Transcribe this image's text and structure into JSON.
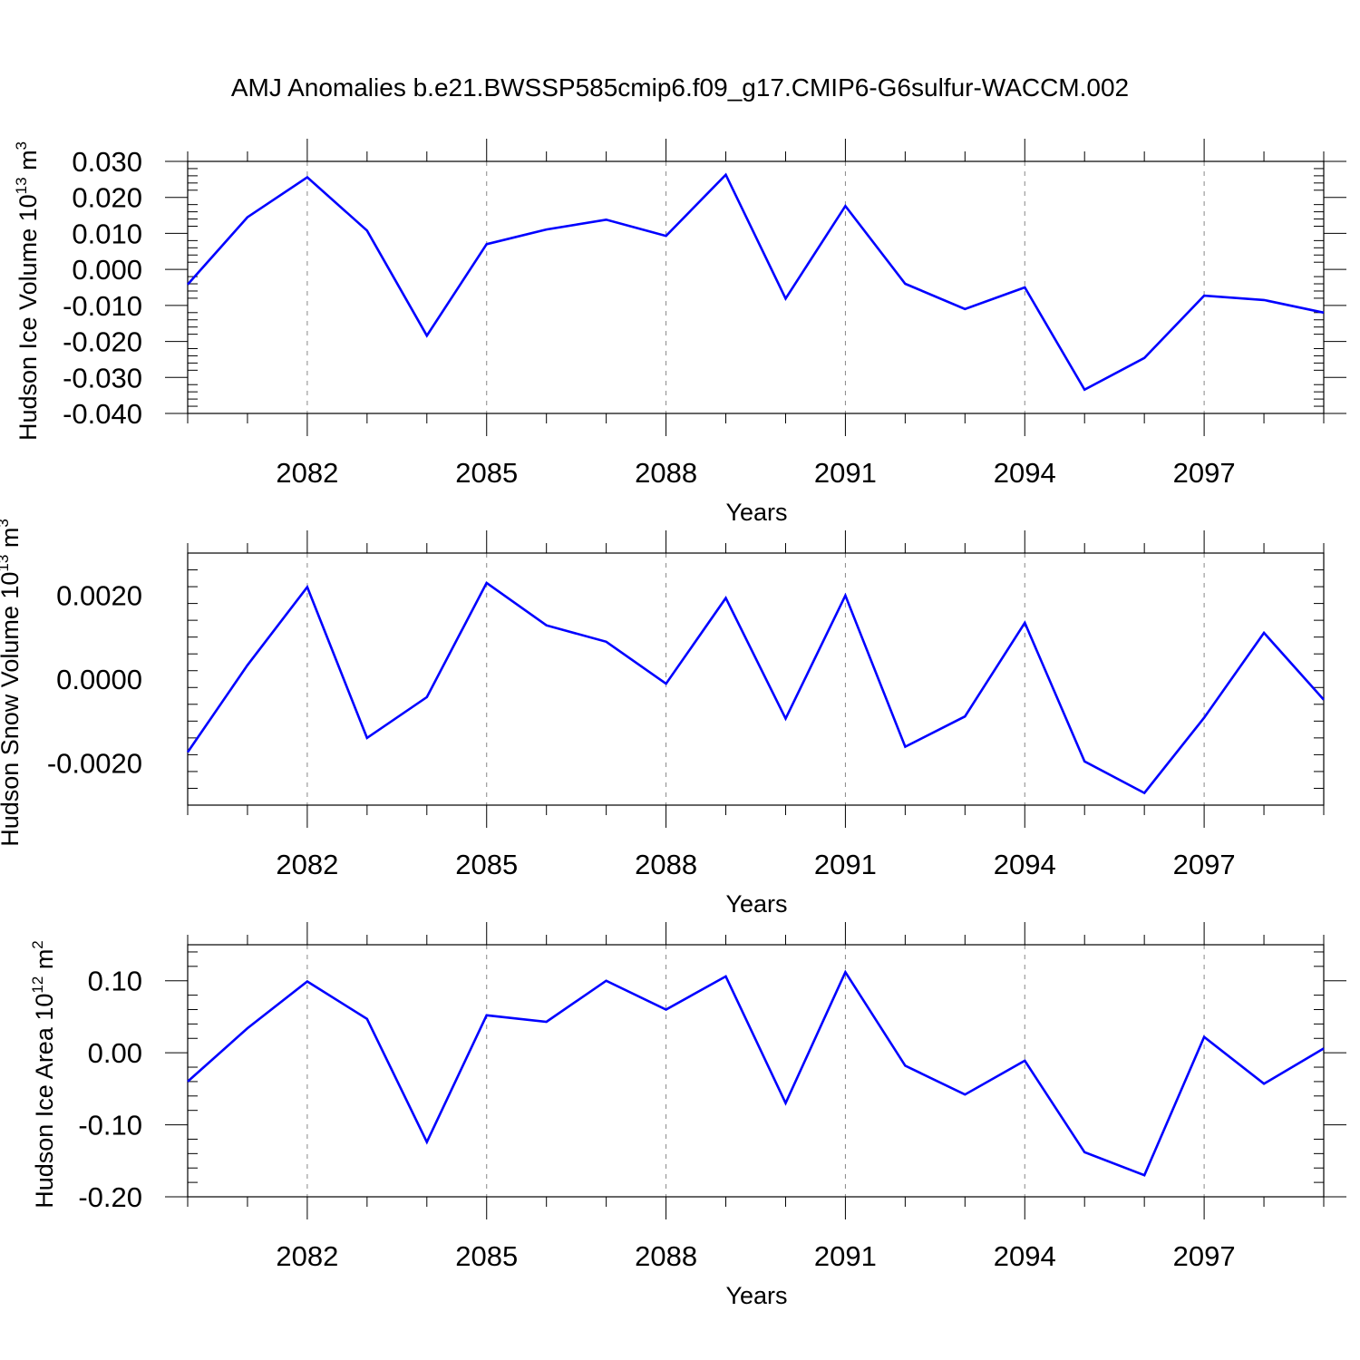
{
  "title": "AMJ Anomalies b.e21.BWSSP585cmip6.f09_g17.CMIP6-G6sulfur-WACCM.002",
  "line_color": "#0000ff",
  "chart_data": [
    {
      "type": "line",
      "ylabel": "Hudson Ice Volume 10",
      "ylabel_exp": "13",
      "ylabel_unit": " m",
      "ylabel_unit_exp": "3",
      "xlabel": "Years",
      "xlim": [
        2080,
        2099
      ],
      "ylim": [
        -0.04,
        0.03
      ],
      "yticks": [
        -0.04,
        -0.03,
        -0.02,
        -0.01,
        0.0,
        0.01,
        0.02,
        0.03
      ],
      "ytick_labels": [
        "-0.040",
        "-0.030",
        "-0.020",
        "-0.010",
        "0.000",
        "0.010",
        "0.020",
        "0.030"
      ],
      "xticks": [
        2082,
        2085,
        2088,
        2091,
        2094,
        2097
      ],
      "xtick_labels": [
        "2082",
        "2085",
        "2088",
        "2091",
        "2094",
        "2097"
      ],
      "grid": "dashed vertical at major x ticks",
      "x": [
        2080,
        2081,
        2082,
        2083,
        2084,
        2085,
        2086,
        2087,
        2088,
        2089,
        2090,
        2091,
        2092,
        2093,
        2094,
        2095,
        2096,
        2097,
        2098,
        2099
      ],
      "y": [
        -0.0042,
        0.0145,
        0.0256,
        0.0108,
        -0.0184,
        0.007,
        0.0111,
        0.0138,
        0.0093,
        0.0263,
        -0.0081,
        0.0176,
        -0.004,
        -0.011,
        -0.005,
        -0.0334,
        -0.0246,
        -0.0073,
        -0.0085,
        -0.012
      ]
    },
    {
      "type": "line",
      "ylabel": "Hudson Snow Volume 10",
      "ylabel_exp": "13",
      "ylabel_unit": " m",
      "ylabel_unit_exp": "3",
      "xlabel": "Years",
      "xlim": [
        2080,
        2099
      ],
      "ylim": [
        -0.003,
        0.003
      ],
      "yticks": [
        -0.002,
        0.0,
        0.002
      ],
      "ytick_labels": [
        "-0.0020",
        "0.0000",
        "0.0020"
      ],
      "xticks": [
        2082,
        2085,
        2088,
        2091,
        2094,
        2097
      ],
      "xtick_labels": [
        "2082",
        "2085",
        "2088",
        "2091",
        "2094",
        "2097"
      ],
      "grid": "dashed vertical at major x ticks",
      "x": [
        2080,
        2081,
        2082,
        2083,
        2084,
        2085,
        2086,
        2087,
        2088,
        2089,
        2090,
        2091,
        2092,
        2093,
        2094,
        2095,
        2096,
        2097,
        2098,
        2099
      ],
      "y": [
        -0.00174,
        0.00033,
        0.00219,
        -0.0014,
        -0.00043,
        0.00229,
        0.00128,
        0.00089,
        -0.00011,
        0.00193,
        -0.00094,
        0.00199,
        -0.00161,
        -0.00089,
        0.00134,
        -0.00196,
        -0.00271,
        -0.00092,
        0.0011,
        -0.00049
      ]
    },
    {
      "type": "line",
      "ylabel": "Hudson Ice Area 10",
      "ylabel_exp": "12",
      "ylabel_unit": " m",
      "ylabel_unit_exp": "2",
      "xlabel": "Years",
      "xlim": [
        2080,
        2099
      ],
      "ylim": [
        -0.2,
        0.15
      ],
      "yticks": [
        -0.2,
        -0.1,
        0.0,
        0.1
      ],
      "ytick_labels": [
        "-0.20",
        "-0.10",
        "0.00",
        "0.10"
      ],
      "xticks": [
        2082,
        2085,
        2088,
        2091,
        2094,
        2097
      ],
      "xtick_labels": [
        "2082",
        "2085",
        "2088",
        "2091",
        "2094",
        "2097"
      ],
      "grid": "dashed vertical at major x ticks",
      "x": [
        2080,
        2081,
        2082,
        2083,
        2084,
        2085,
        2086,
        2087,
        2088,
        2089,
        2090,
        2091,
        2092,
        2093,
        2094,
        2095,
        2096,
        2097,
        2098,
        2099
      ],
      "y": [
        -0.04,
        0.034,
        0.099,
        0.047,
        -0.124,
        0.052,
        0.043,
        0.1,
        0.06,
        0.106,
        -0.07,
        0.112,
        -0.018,
        -0.058,
        -0.011,
        -0.138,
        -0.17,
        0.022,
        -0.043,
        0.006
      ]
    }
  ]
}
